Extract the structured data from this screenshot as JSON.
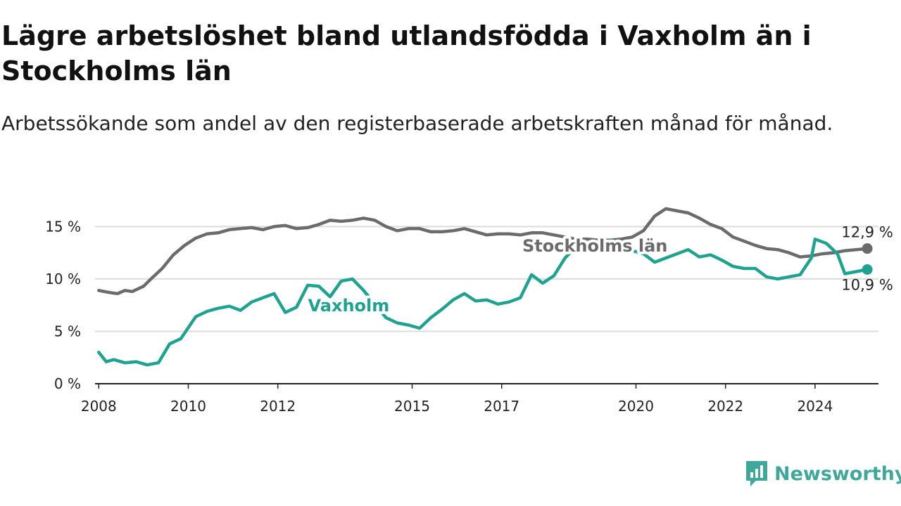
{
  "title": "Lägre arbetslöshet bland utlandsfödda i Vaxholm än i Stockholms län",
  "subtitle": "Arbetssökande som andel av den registerbaserade arbetskraften månad för månad.",
  "brand": {
    "name": "Newsworthy",
    "icon": "newsworthy-logo-icon",
    "color": "#3fa89a"
  },
  "chart_data": {
    "type": "line",
    "title": "Lägre arbetslöshet bland utlandsfödda i Vaxholm än i Stockholms län",
    "subtitle": "Arbetssökande som andel av den registerbaserade arbetskraften månad för månad.",
    "xlabel": "",
    "ylabel": "",
    "x_ticks": [
      "2008",
      "2010",
      "2012",
      "2015",
      "2017",
      "2020",
      "2022",
      "2024"
    ],
    "y_ticks": [
      "0 %",
      "5 %",
      "10 %",
      "15 %"
    ],
    "xlim": [
      "2007-12",
      "2025-06"
    ],
    "ylim": [
      0,
      16.5
    ],
    "grid": "horizontal",
    "legend": "inline labels on lines",
    "series": [
      {
        "name": "Stockholms län",
        "color": "#6b6b6e",
        "end_label": "12,9 %",
        "points": [
          [
            "2008-01",
            8.9
          ],
          [
            "2008-04",
            8.7
          ],
          [
            "2008-06",
            8.6
          ],
          [
            "2008-08",
            8.9
          ],
          [
            "2008-10",
            8.8
          ],
          [
            "2009-01",
            9.3
          ],
          [
            "2009-03",
            10.0
          ],
          [
            "2009-06",
            11.0
          ],
          [
            "2009-09",
            12.3
          ],
          [
            "2009-12",
            13.2
          ],
          [
            "2010-03",
            13.9
          ],
          [
            "2010-06",
            14.3
          ],
          [
            "2010-09",
            14.4
          ],
          [
            "2010-12",
            14.7
          ],
          [
            "2011-03",
            14.8
          ],
          [
            "2011-06",
            14.9
          ],
          [
            "2011-09",
            14.7
          ],
          [
            "2011-12",
            15.0
          ],
          [
            "2012-03",
            15.1
          ],
          [
            "2012-06",
            14.8
          ],
          [
            "2012-09",
            14.9
          ],
          [
            "2012-12",
            15.2
          ],
          [
            "2013-03",
            15.6
          ],
          [
            "2013-06",
            15.5
          ],
          [
            "2013-09",
            15.6
          ],
          [
            "2013-12",
            15.8
          ],
          [
            "2014-03",
            15.6
          ],
          [
            "2014-06",
            15.0
          ],
          [
            "2014-09",
            14.6
          ],
          [
            "2014-12",
            14.8
          ],
          [
            "2015-03",
            14.8
          ],
          [
            "2015-06",
            14.5
          ],
          [
            "2015-09",
            14.5
          ],
          [
            "2015-12",
            14.6
          ],
          [
            "2016-03",
            14.8
          ],
          [
            "2016-06",
            14.5
          ],
          [
            "2016-09",
            14.2
          ],
          [
            "2016-12",
            14.3
          ],
          [
            "2017-03",
            14.3
          ],
          [
            "2017-06",
            14.2
          ],
          [
            "2017-09",
            14.4
          ],
          [
            "2017-12",
            14.4
          ],
          [
            "2018-03",
            14.2
          ],
          [
            "2018-06",
            14.0
          ],
          [
            "2018-09",
            13.8
          ],
          [
            "2018-12",
            13.8
          ],
          [
            "2019-03",
            13.7
          ],
          [
            "2019-06",
            13.7
          ],
          [
            "2019-09",
            13.8
          ],
          [
            "2019-12",
            14.0
          ],
          [
            "2020-03",
            14.6
          ],
          [
            "2020-06",
            16.0
          ],
          [
            "2020-09",
            16.7
          ],
          [
            "2020-12",
            16.5
          ],
          [
            "2021-03",
            16.3
          ],
          [
            "2021-06",
            15.8
          ],
          [
            "2021-09",
            15.2
          ],
          [
            "2021-12",
            14.8
          ],
          [
            "2022-03",
            14.0
          ],
          [
            "2022-06",
            13.6
          ],
          [
            "2022-09",
            13.2
          ],
          [
            "2022-12",
            12.9
          ],
          [
            "2023-03",
            12.8
          ],
          [
            "2023-06",
            12.5
          ],
          [
            "2023-09",
            12.1
          ],
          [
            "2023-12",
            12.2
          ],
          [
            "2024-03",
            12.4
          ],
          [
            "2024-06",
            12.5
          ],
          [
            "2024-09",
            12.7
          ],
          [
            "2024-12",
            12.8
          ],
          [
            "2025-03",
            12.9
          ]
        ]
      },
      {
        "name": "Vaxholm",
        "color": "#1fa390",
        "end_label": "10,9 %",
        "points": [
          [
            "2008-01",
            3.0
          ],
          [
            "2008-03",
            2.1
          ],
          [
            "2008-05",
            2.3
          ],
          [
            "2008-08",
            2.0
          ],
          [
            "2008-11",
            2.1
          ],
          [
            "2009-02",
            1.8
          ],
          [
            "2009-05",
            2.0
          ],
          [
            "2009-08",
            3.8
          ],
          [
            "2009-11",
            4.3
          ],
          [
            "2010-03",
            6.4
          ],
          [
            "2010-06",
            6.9
          ],
          [
            "2010-09",
            7.2
          ],
          [
            "2010-12",
            7.4
          ],
          [
            "2011-03",
            7.0
          ],
          [
            "2011-06",
            7.8
          ],
          [
            "2011-09",
            8.2
          ],
          [
            "2011-12",
            8.6
          ],
          [
            "2012-03",
            6.8
          ],
          [
            "2012-06",
            7.3
          ],
          [
            "2012-09",
            9.4
          ],
          [
            "2012-12",
            9.3
          ],
          [
            "2013-03",
            8.3
          ],
          [
            "2013-06",
            9.8
          ],
          [
            "2013-09",
            10.0
          ],
          [
            "2013-12",
            8.9
          ],
          [
            "2014-03",
            7.6
          ],
          [
            "2014-06",
            6.3
          ],
          [
            "2014-09",
            5.8
          ],
          [
            "2014-12",
            5.6
          ],
          [
            "2015-03",
            5.3
          ],
          [
            "2015-06",
            6.3
          ],
          [
            "2015-09",
            7.1
          ],
          [
            "2015-12",
            8.0
          ],
          [
            "2016-03",
            8.6
          ],
          [
            "2016-06",
            7.9
          ],
          [
            "2016-09",
            8.0
          ],
          [
            "2016-12",
            7.6
          ],
          [
            "2017-03",
            7.8
          ],
          [
            "2017-06",
            8.2
          ],
          [
            "2017-09",
            10.4
          ],
          [
            "2017-12",
            9.6
          ],
          [
            "2018-03",
            10.3
          ],
          [
            "2018-06",
            12.0
          ],
          [
            "2018-09",
            13.1
          ],
          [
            "2018-12",
            13.4
          ],
          [
            "2019-03",
            13.2
          ],
          [
            "2019-06",
            13.7
          ],
          [
            "2019-09",
            13.2
          ],
          [
            "2019-12",
            12.7
          ],
          [
            "2020-03",
            12.4
          ],
          [
            "2020-06",
            11.6
          ],
          [
            "2020-09",
            12.0
          ],
          [
            "2020-12",
            12.4
          ],
          [
            "2021-03",
            12.8
          ],
          [
            "2021-06",
            12.1
          ],
          [
            "2021-09",
            12.3
          ],
          [
            "2021-12",
            11.8
          ],
          [
            "2022-03",
            11.2
          ],
          [
            "2022-06",
            11.0
          ],
          [
            "2022-09",
            11.0
          ],
          [
            "2022-12",
            10.2
          ],
          [
            "2023-03",
            10.0
          ],
          [
            "2023-06",
            10.2
          ],
          [
            "2023-09",
            10.4
          ],
          [
            "2023-12",
            12.0
          ],
          [
            "2024-01",
            13.8
          ],
          [
            "2024-04",
            13.4
          ],
          [
            "2024-07",
            12.4
          ],
          [
            "2024-09",
            10.5
          ],
          [
            "2024-12",
            10.7
          ],
          [
            "2025-03",
            10.9
          ]
        ]
      }
    ],
    "labels": [
      {
        "series": "Stockholms län",
        "text": "Stockholms län",
        "anchor": [
          "2019-02",
          12.6
        ]
      },
      {
        "series": "Vaxholm",
        "text": "Vaxholm",
        "anchor": [
          "2013-08",
          6.9
        ]
      }
    ]
  }
}
